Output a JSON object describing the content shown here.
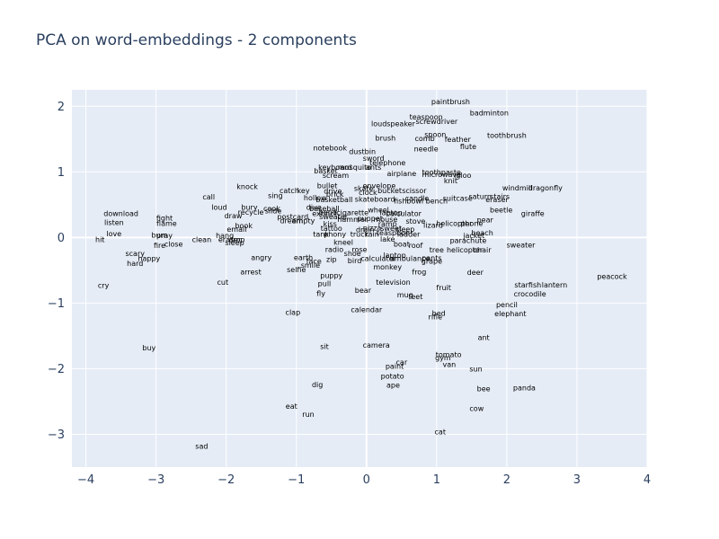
{
  "chart_data": {
    "type": "scatter",
    "mode": "text",
    "title": "PCA on word-embeddings - 2 components",
    "xlabel": "",
    "ylabel": "",
    "xlim": [
      -4.2,
      4.0
    ],
    "ylim": [
      -3.5,
      2.25
    ],
    "xticks": [
      -4,
      -3,
      -2,
      -1,
      0,
      1,
      2,
      3,
      4
    ],
    "yticks": [
      -3,
      -2,
      -1,
      0,
      1,
      2
    ],
    "grid": true,
    "points": [
      {
        "label": "paintbrush",
        "x": 1.2,
        "y": 2.07
      },
      {
        "label": "badminton",
        "x": 1.75,
        "y": 1.9
      },
      {
        "label": "teaspoon",
        "x": 0.85,
        "y": 1.84
      },
      {
        "label": "screwdriver",
        "x": 1.0,
        "y": 1.77
      },
      {
        "label": "loudspeaker",
        "x": 0.38,
        "y": 1.74
      },
      {
        "label": "toothbrush",
        "x": 2.0,
        "y": 1.56
      },
      {
        "label": "spoon",
        "x": 0.98,
        "y": 1.57
      },
      {
        "label": "brush",
        "x": 0.27,
        "y": 1.52
      },
      {
        "label": "comb",
        "x": 0.83,
        "y": 1.51
      },
      {
        "label": "feather",
        "x": 1.3,
        "y": 1.5
      },
      {
        "label": "flute",
        "x": 1.45,
        "y": 1.39
      },
      {
        "label": "needle",
        "x": 0.85,
        "y": 1.35
      },
      {
        "label": "notebook",
        "x": -0.52,
        "y": 1.37
      },
      {
        "label": "dustbin",
        "x": -0.06,
        "y": 1.31
      },
      {
        "label": "sword",
        "x": 0.1,
        "y": 1.21
      },
      {
        "label": "telephone",
        "x": 0.3,
        "y": 1.14
      },
      {
        "label": "keyboard",
        "x": -0.45,
        "y": 1.07
      },
      {
        "label": "mosquito",
        "x": -0.17,
        "y": 1.07
      },
      {
        "label": "ants",
        "x": 0.1,
        "y": 1.07
      },
      {
        "label": "basket",
        "x": -0.58,
        "y": 1.02
      },
      {
        "label": "airplane",
        "x": 0.5,
        "y": 0.98
      },
      {
        "label": "toothpaste",
        "x": 1.07,
        "y": 1.0
      },
      {
        "label": "microwave",
        "x": 1.07,
        "y": 0.96
      },
      {
        "label": "igloo",
        "x": 1.37,
        "y": 0.95
      },
      {
        "label": "scream",
        "x": -0.44,
        "y": 0.95
      },
      {
        "label": "knit",
        "x": 1.2,
        "y": 0.87
      },
      {
        "label": "knock",
        "x": -1.7,
        "y": 0.78
      },
      {
        "label": "bullet",
        "x": -0.56,
        "y": 0.79
      },
      {
        "label": "envelope",
        "x": 0.18,
        "y": 0.79
      },
      {
        "label": "windmill",
        "x": 2.15,
        "y": 0.76
      },
      {
        "label": "dragonfly",
        "x": 2.55,
        "y": 0.76
      },
      {
        "label": "catch",
        "x": -1.1,
        "y": 0.72
      },
      {
        "label": "key",
        "x": -0.9,
        "y": 0.72
      },
      {
        "label": "drive",
        "x": -0.48,
        "y": 0.71
      },
      {
        "label": "skate",
        "x": -0.04,
        "y": 0.75
      },
      {
        "label": "clock",
        "x": 0.02,
        "y": 0.69
      },
      {
        "label": "bucket",
        "x": 0.33,
        "y": 0.72
      },
      {
        "label": "scissor",
        "x": 0.68,
        "y": 0.72
      },
      {
        "label": "sing",
        "x": -1.3,
        "y": 0.64
      },
      {
        "label": "call",
        "x": -2.25,
        "y": 0.62
      },
      {
        "label": "hollow",
        "x": -0.73,
        "y": 0.61
      },
      {
        "label": "brick",
        "x": -0.45,
        "y": 0.66
      },
      {
        "label": "saturn",
        "x": 1.62,
        "y": 0.63
      },
      {
        "label": "stairs",
        "x": 1.9,
        "y": 0.63
      },
      {
        "label": "eraser",
        "x": 1.86,
        "y": 0.58
      },
      {
        "label": "basketball",
        "x": -0.46,
        "y": 0.58
      },
      {
        "label": "skateboard",
        "x": 0.12,
        "y": 0.59
      },
      {
        "label": "fishbowl",
        "x": 0.6,
        "y": 0.56
      },
      {
        "label": "candle",
        "x": 0.72,
        "y": 0.6
      },
      {
        "label": "suitcase",
        "x": 1.3,
        "y": 0.6
      },
      {
        "label": "bench",
        "x": 1.0,
        "y": 0.56
      },
      {
        "label": "loud",
        "x": -2.1,
        "y": 0.46
      },
      {
        "label": "bury",
        "x": -1.67,
        "y": 0.46
      },
      {
        "label": "cook",
        "x": -1.35,
        "y": 0.44
      },
      {
        "label": "slide",
        "x": -1.33,
        "y": 0.41
      },
      {
        "label": "dive",
        "x": -0.75,
        "y": 0.46
      },
      {
        "label": "baseball",
        "x": -0.6,
        "y": 0.44
      },
      {
        "label": "wheel",
        "x": 0.17,
        "y": 0.42
      },
      {
        "label": "beetle",
        "x": 1.92,
        "y": 0.42
      },
      {
        "label": "giraffe",
        "x": 2.37,
        "y": 0.37
      },
      {
        "label": "download",
        "x": -3.5,
        "y": 0.37
      },
      {
        "label": "recycle",
        "x": -1.65,
        "y": 0.39
      },
      {
        "label": "extinct",
        "x": -0.6,
        "y": 0.37
      },
      {
        "label": "bend",
        "x": -0.55,
        "y": 0.39
      },
      {
        "label": "cigarette",
        "x": -0.2,
        "y": 0.38
      },
      {
        "label": "laptop",
        "x": 0.35,
        "y": 0.38
      },
      {
        "label": "calculator",
        "x": 0.53,
        "y": 0.37
      },
      {
        "label": "draw",
        "x": -1.9,
        "y": 0.33
      },
      {
        "label": "fight",
        "x": -2.88,
        "y": 0.3
      },
      {
        "label": "postcard",
        "x": -1.05,
        "y": 0.32
      },
      {
        "label": "sweater",
        "x": -0.47,
        "y": 0.32
      },
      {
        "label": "hammer",
        "x": -0.2,
        "y": 0.28
      },
      {
        "label": "puppet",
        "x": 0.05,
        "y": 0.29
      },
      {
        "label": "mouse",
        "x": 0.27,
        "y": 0.28
      },
      {
        "label": "pear",
        "x": 1.69,
        "y": 0.27
      },
      {
        "label": "listen",
        "x": -3.6,
        "y": 0.23
      },
      {
        "label": "flame",
        "x": -2.85,
        "y": 0.22
      },
      {
        "label": "book",
        "x": -1.75,
        "y": 0.18
      },
      {
        "label": "dream",
        "x": -1.07,
        "y": 0.26
      },
      {
        "label": "empty",
        "x": -0.9,
        "y": 0.26
      },
      {
        "label": "kiss",
        "x": -0.52,
        "y": 0.21
      },
      {
        "label": "ramp",
        "x": 0.3,
        "y": 0.21
      },
      {
        "label": "stove",
        "x": 0.7,
        "y": 0.25
      },
      {
        "label": "lizard",
        "x": 0.95,
        "y": 0.19
      },
      {
        "label": "helicopter",
        "x": 1.25,
        "y": 0.22
      },
      {
        "label": "phone",
        "x": 1.5,
        "y": 0.22
      },
      {
        "label": "email",
        "x": -1.85,
        "y": 0.13
      },
      {
        "label": "tattoo",
        "x": -0.5,
        "y": 0.14
      },
      {
        "label": "drain",
        "x": -0.02,
        "y": 0.12
      },
      {
        "label": "pizza",
        "x": 0.08,
        "y": 0.15
      },
      {
        "label": "sweet",
        "x": 0.35,
        "y": 0.14
      },
      {
        "label": "sleep",
        "x": 0.55,
        "y": 0.13
      },
      {
        "label": "beach",
        "x": 1.65,
        "y": 0.07
      },
      {
        "label": "love",
        "x": -3.6,
        "y": 0.06
      },
      {
        "label": "burn",
        "x": -2.95,
        "y": 0.04
      },
      {
        "label": "pray",
        "x": -2.88,
        "y": 0.03
      },
      {
        "label": "hang",
        "x": -2.02,
        "y": 0.03
      },
      {
        "label": "tank",
        "x": -0.65,
        "y": 0.05
      },
      {
        "label": "phony",
        "x": -0.45,
        "y": 0.05
      },
      {
        "label": "truck",
        "x": -0.1,
        "y": 0.05
      },
      {
        "label": "rain",
        "x": 0.08,
        "y": 0.05
      },
      {
        "label": "teaspoon",
        "x": 0.38,
        "y": 0.07
      },
      {
        "label": "ladder",
        "x": 0.6,
        "y": 0.05
      },
      {
        "label": "jacket",
        "x": 1.53,
        "y": 0.03
      },
      {
        "label": "hit",
        "x": -3.8,
        "y": -0.03
      },
      {
        "label": "clean",
        "x": -2.35,
        "y": -0.03
      },
      {
        "label": "eraser",
        "x": -1.95,
        "y": -0.03
      },
      {
        "label": "drop",
        "x": -1.85,
        "y": -0.03
      },
      {
        "label": "lake",
        "x": 0.3,
        "y": -0.02
      },
      {
        "label": "parachute",
        "x": 1.45,
        "y": -0.04
      },
      {
        "label": "fire",
        "x": -2.95,
        "y": -0.12
      },
      {
        "label": "close",
        "x": -2.75,
        "y": -0.1
      },
      {
        "label": "sleep",
        "x": -1.88,
        "y": -0.08
      },
      {
        "label": "kneel",
        "x": -0.33,
        "y": -0.07
      },
      {
        "label": "boat",
        "x": 0.5,
        "y": -0.1
      },
      {
        "label": "roof",
        "x": 0.7,
        "y": -0.12
      },
      {
        "label": "sweater",
        "x": 2.2,
        "y": -0.11
      },
      {
        "label": "radio",
        "x": -0.46,
        "y": -0.18
      },
      {
        "label": "rose",
        "x": -0.1,
        "y": -0.18
      },
      {
        "label": "tree",
        "x": 1.0,
        "y": -0.19
      },
      {
        "label": "helicopter",
        "x": 1.4,
        "y": -0.19
      },
      {
        "label": "chair",
        "x": 1.65,
        "y": -0.19
      },
      {
        "label": "scary",
        "x": -3.3,
        "y": -0.24
      },
      {
        "label": "shoe",
        "x": -0.2,
        "y": -0.24
      },
      {
        "label": "laptop",
        "x": 0.4,
        "y": -0.27
      },
      {
        "label": "happy",
        "x": -3.1,
        "y": -0.32
      },
      {
        "label": "angry",
        "x": -1.5,
        "y": -0.3
      },
      {
        "label": "earth",
        "x": -0.9,
        "y": -0.3
      },
      {
        "label": "face",
        "x": -0.75,
        "y": -0.36
      },
      {
        "label": "zip",
        "x": -0.5,
        "y": -0.33
      },
      {
        "label": "bird",
        "x": -0.17,
        "y": -0.35
      },
      {
        "label": "calculator",
        "x": 0.17,
        "y": -0.32
      },
      {
        "label": "ambulance",
        "x": 0.62,
        "y": -0.32
      },
      {
        "label": "pants",
        "x": 0.93,
        "y": -0.31
      },
      {
        "label": "grape",
        "x": 0.93,
        "y": -0.36
      },
      {
        "label": "hard",
        "x": -3.3,
        "y": -0.39
      },
      {
        "label": "smile",
        "x": -0.8,
        "y": -0.42
      },
      {
        "label": "monkey",
        "x": 0.3,
        "y": -0.45
      },
      {
        "label": "selfie",
        "x": -1.0,
        "y": -0.49
      },
      {
        "label": "arrest",
        "x": -1.65,
        "y": -0.52
      },
      {
        "label": "frog",
        "x": 0.75,
        "y": -0.52
      },
      {
        "label": "deer",
        "x": 1.55,
        "y": -0.53
      },
      {
        "label": "puppy",
        "x": -0.5,
        "y": -0.58
      },
      {
        "label": "cut",
        "x": -2.05,
        "y": -0.68
      },
      {
        "label": "pull",
        "x": -0.6,
        "y": -0.7
      },
      {
        "label": "television",
        "x": 0.38,
        "y": -0.68
      },
      {
        "label": "starfish",
        "x": 2.3,
        "y": -0.72
      },
      {
        "label": "lantern",
        "x": 2.68,
        "y": -0.72
      },
      {
        "label": "peacock",
        "x": 3.5,
        "y": -0.59
      },
      {
        "label": "cry",
        "x": -3.75,
        "y": -0.73
      },
      {
        "label": "bear",
        "x": -0.05,
        "y": -0.8
      },
      {
        "label": "fruit",
        "x": 1.1,
        "y": -0.76
      },
      {
        "label": "fly",
        "x": -0.65,
        "y": -0.85
      },
      {
        "label": "mug",
        "x": 0.55,
        "y": -0.87
      },
      {
        "label": "feet",
        "x": 0.7,
        "y": -0.9
      },
      {
        "label": "crocodile",
        "x": 2.33,
        "y": -0.86
      },
      {
        "label": "pencil",
        "x": 2.0,
        "y": -1.02
      },
      {
        "label": "clap",
        "x": -1.05,
        "y": -1.14
      },
      {
        "label": "calendar",
        "x": 0.0,
        "y": -1.1
      },
      {
        "label": "bed",
        "x": 1.03,
        "y": -1.15
      },
      {
        "label": "rifle",
        "x": 0.98,
        "y": -1.21
      },
      {
        "label": "elephant",
        "x": 2.05,
        "y": -1.16
      },
      {
        "label": "ant",
        "x": 1.67,
        "y": -1.52
      },
      {
        "label": "buy",
        "x": -3.1,
        "y": -1.68
      },
      {
        "label": "sit",
        "x": -0.6,
        "y": -1.66
      },
      {
        "label": "camera",
        "x": 0.14,
        "y": -1.64
      },
      {
        "label": "tomato",
        "x": 1.17,
        "y": -1.78
      },
      {
        "label": "gym",
        "x": 1.09,
        "y": -1.83
      },
      {
        "label": "van",
        "x": 1.18,
        "y": -1.93
      },
      {
        "label": "car",
        "x": 0.5,
        "y": -1.9
      },
      {
        "label": "paint",
        "x": 0.4,
        "y": -1.96
      },
      {
        "label": "sun",
        "x": 1.56,
        "y": -2.0
      },
      {
        "label": "potato",
        "x": 0.37,
        "y": -2.11
      },
      {
        "label": "ape",
        "x": 0.38,
        "y": -2.25
      },
      {
        "label": "dig",
        "x": -0.7,
        "y": -2.24
      },
      {
        "label": "bee",
        "x": 1.67,
        "y": -2.3
      },
      {
        "label": "panda",
        "x": 2.25,
        "y": -2.29
      },
      {
        "label": "eat",
        "x": -1.07,
        "y": -2.57
      },
      {
        "label": "cow",
        "x": 1.57,
        "y": -2.6
      },
      {
        "label": "run",
        "x": -0.83,
        "y": -2.69
      },
      {
        "label": "cat",
        "x": 1.05,
        "y": -2.96
      },
      {
        "label": "sad",
        "x": -2.35,
        "y": -3.18
      }
    ]
  }
}
